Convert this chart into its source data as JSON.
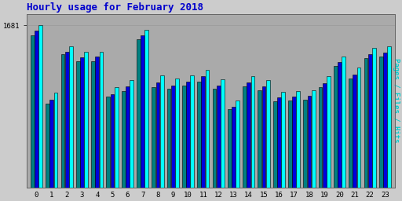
{
  "title": "Hourly usage for February 2018",
  "title_color": "#0000cc",
  "title_fontsize": 9,
  "ylabel_right": "Pages / Files / Hits",
  "background_color": "#cccccc",
  "plot_bg_color": "#aaaaaa",
  "hours": [
    0,
    1,
    2,
    3,
    4,
    5,
    6,
    7,
    8,
    9,
    10,
    11,
    12,
    13,
    14,
    15,
    16,
    17,
    18,
    19,
    20,
    21,
    22,
    23
  ],
  "pages": [
    1580,
    870,
    1380,
    1310,
    1310,
    940,
    1000,
    1540,
    1040,
    1020,
    1060,
    1100,
    1020,
    810,
    1050,
    1010,
    890,
    900,
    910,
    1040,
    1260,
    1130,
    1340,
    1360
  ],
  "files": [
    1630,
    910,
    1410,
    1350,
    1360,
    970,
    1050,
    1580,
    1090,
    1060,
    1100,
    1150,
    1060,
    840,
    1090,
    1050,
    930,
    940,
    950,
    1080,
    1300,
    1170,
    1380,
    1400
  ],
  "hits": [
    1681,
    980,
    1460,
    1410,
    1410,
    1040,
    1110,
    1631,
    1160,
    1130,
    1160,
    1220,
    1120,
    900,
    1150,
    1110,
    990,
    1000,
    1010,
    1150,
    1360,
    1240,
    1450,
    1460
  ],
  "pages_color": "#008080",
  "files_color": "#0000dd",
  "hits_color": "#00ffff",
  "bar_edge_color": "#000000",
  "ytick_label": "1681",
  "ymax": 1800
}
